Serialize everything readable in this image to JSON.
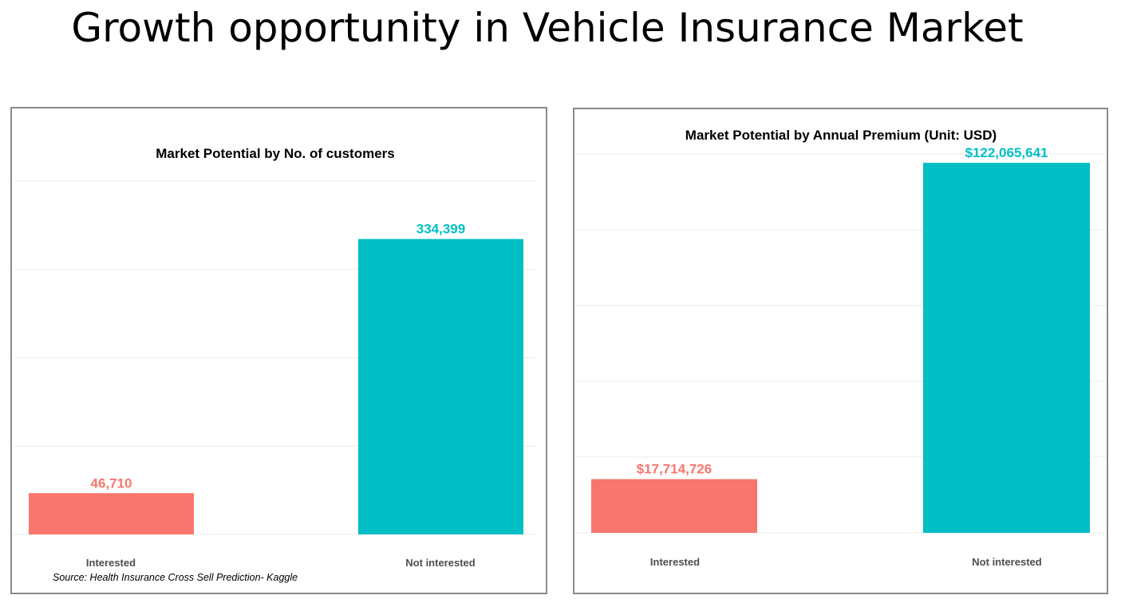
{
  "slide_title": "Growth opportunity in Vehicle Insurance Market",
  "chart_data": [
    {
      "type": "bar",
      "title": "Market Potential by No. of customers",
      "categories": [
        "Interested",
        "Not interested"
      ],
      "values": [
        46710,
        334399
      ],
      "value_labels": [
        "46,710",
        "334,399"
      ],
      "colors": [
        "#f8766d",
        "#00bfc4"
      ],
      "ylim": [
        0,
        400000
      ],
      "gridlines": [
        0,
        100000,
        200000,
        300000,
        400000
      ],
      "grid": true,
      "xlabel": "",
      "ylabel": "",
      "source": "Source: Health Insurance Cross Sell Prediction- Kaggle"
    },
    {
      "type": "bar",
      "title": "Market Potential by Annual Premium (Unit: USD)",
      "categories": [
        "Interested",
        "Not interested"
      ],
      "values": [
        17714726,
        122065641
      ],
      "value_labels": [
        "$17,714,726",
        "$122,065,641"
      ],
      "colors": [
        "#f8766d",
        "#00bfc4"
      ],
      "ylim": [
        0,
        125000000
      ],
      "gridlines": [
        0,
        25000000,
        50000000,
        75000000,
        100000000,
        125000000
      ],
      "grid": true,
      "xlabel": "",
      "ylabel": ""
    }
  ]
}
